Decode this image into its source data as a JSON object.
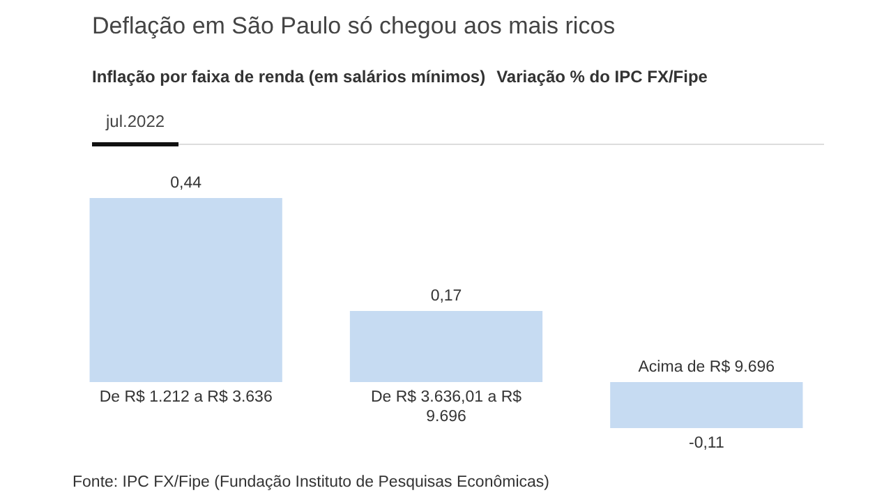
{
  "chart_data": {
    "type": "bar",
    "title": "Deflação em São Paulo só chegou aos mais ricos",
    "subtitle": "Inflação por faixa de renda (em salários mínimos)",
    "legend_title": "jul.2022",
    "categories": [
      "De R$ 1.212 a R$ 3.636",
      "De R$ 3.636,01 a R$ 9.696",
      "Acima de R$ 9.696"
    ],
    "values": [
      0.44,
      0.17,
      -0.11
    ],
    "value_labels": [
      "0,44",
      "0,17",
      "-0,11"
    ],
    "color": "#c6dbf2",
    "annotations": [
      "Variação % do IPC FX/Fipe",
      "Fonte: IPC FX/Fipe (Fundação Instituto de Pesquisas Econômicas)"
    ]
  }
}
